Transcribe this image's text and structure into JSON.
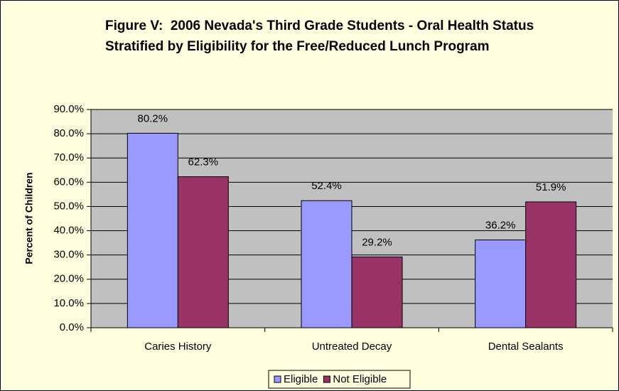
{
  "chart_data": {
    "type": "bar",
    "title": "Figure V:  2006 Nevada's Third Grade Students - Oral Health Status Stratified by Eligibility for the Free/Reduced Lunch Program",
    "y_label": "Percent of Children",
    "categories": [
      "Caries History",
      "Untreated Decay",
      "Dental Sealants"
    ],
    "series": [
      {
        "name": "Eligible",
        "color": "#9999ff",
        "values": [
          80.2,
          52.4,
          36.2
        ],
        "value_labels": [
          "80.2%",
          "52.4%",
          "36.2%"
        ]
      },
      {
        "name": "Not Eligible",
        "color": "#993366",
        "values": [
          62.3,
          29.2,
          51.9
        ],
        "value_labels": [
          "62.3%",
          "29.2%",
          "51.9%"
        ]
      }
    ],
    "ylim": [
      0,
      90
    ],
    "yticks": [
      {
        "value": 0,
        "label": "0.0%"
      },
      {
        "value": 10,
        "label": "10.0%"
      },
      {
        "value": 20,
        "label": "20.0%"
      },
      {
        "value": 30,
        "label": "30.0%"
      },
      {
        "value": 40,
        "label": "40.0%"
      },
      {
        "value": 50,
        "label": "50.0%"
      },
      {
        "value": 60,
        "label": "60.0%"
      },
      {
        "value": 70,
        "label": "70.0%"
      },
      {
        "value": 80,
        "label": "80.0%"
      },
      {
        "value": 90,
        "label": "90.0%"
      }
    ],
    "grid": true,
    "legend": "bottom"
  }
}
